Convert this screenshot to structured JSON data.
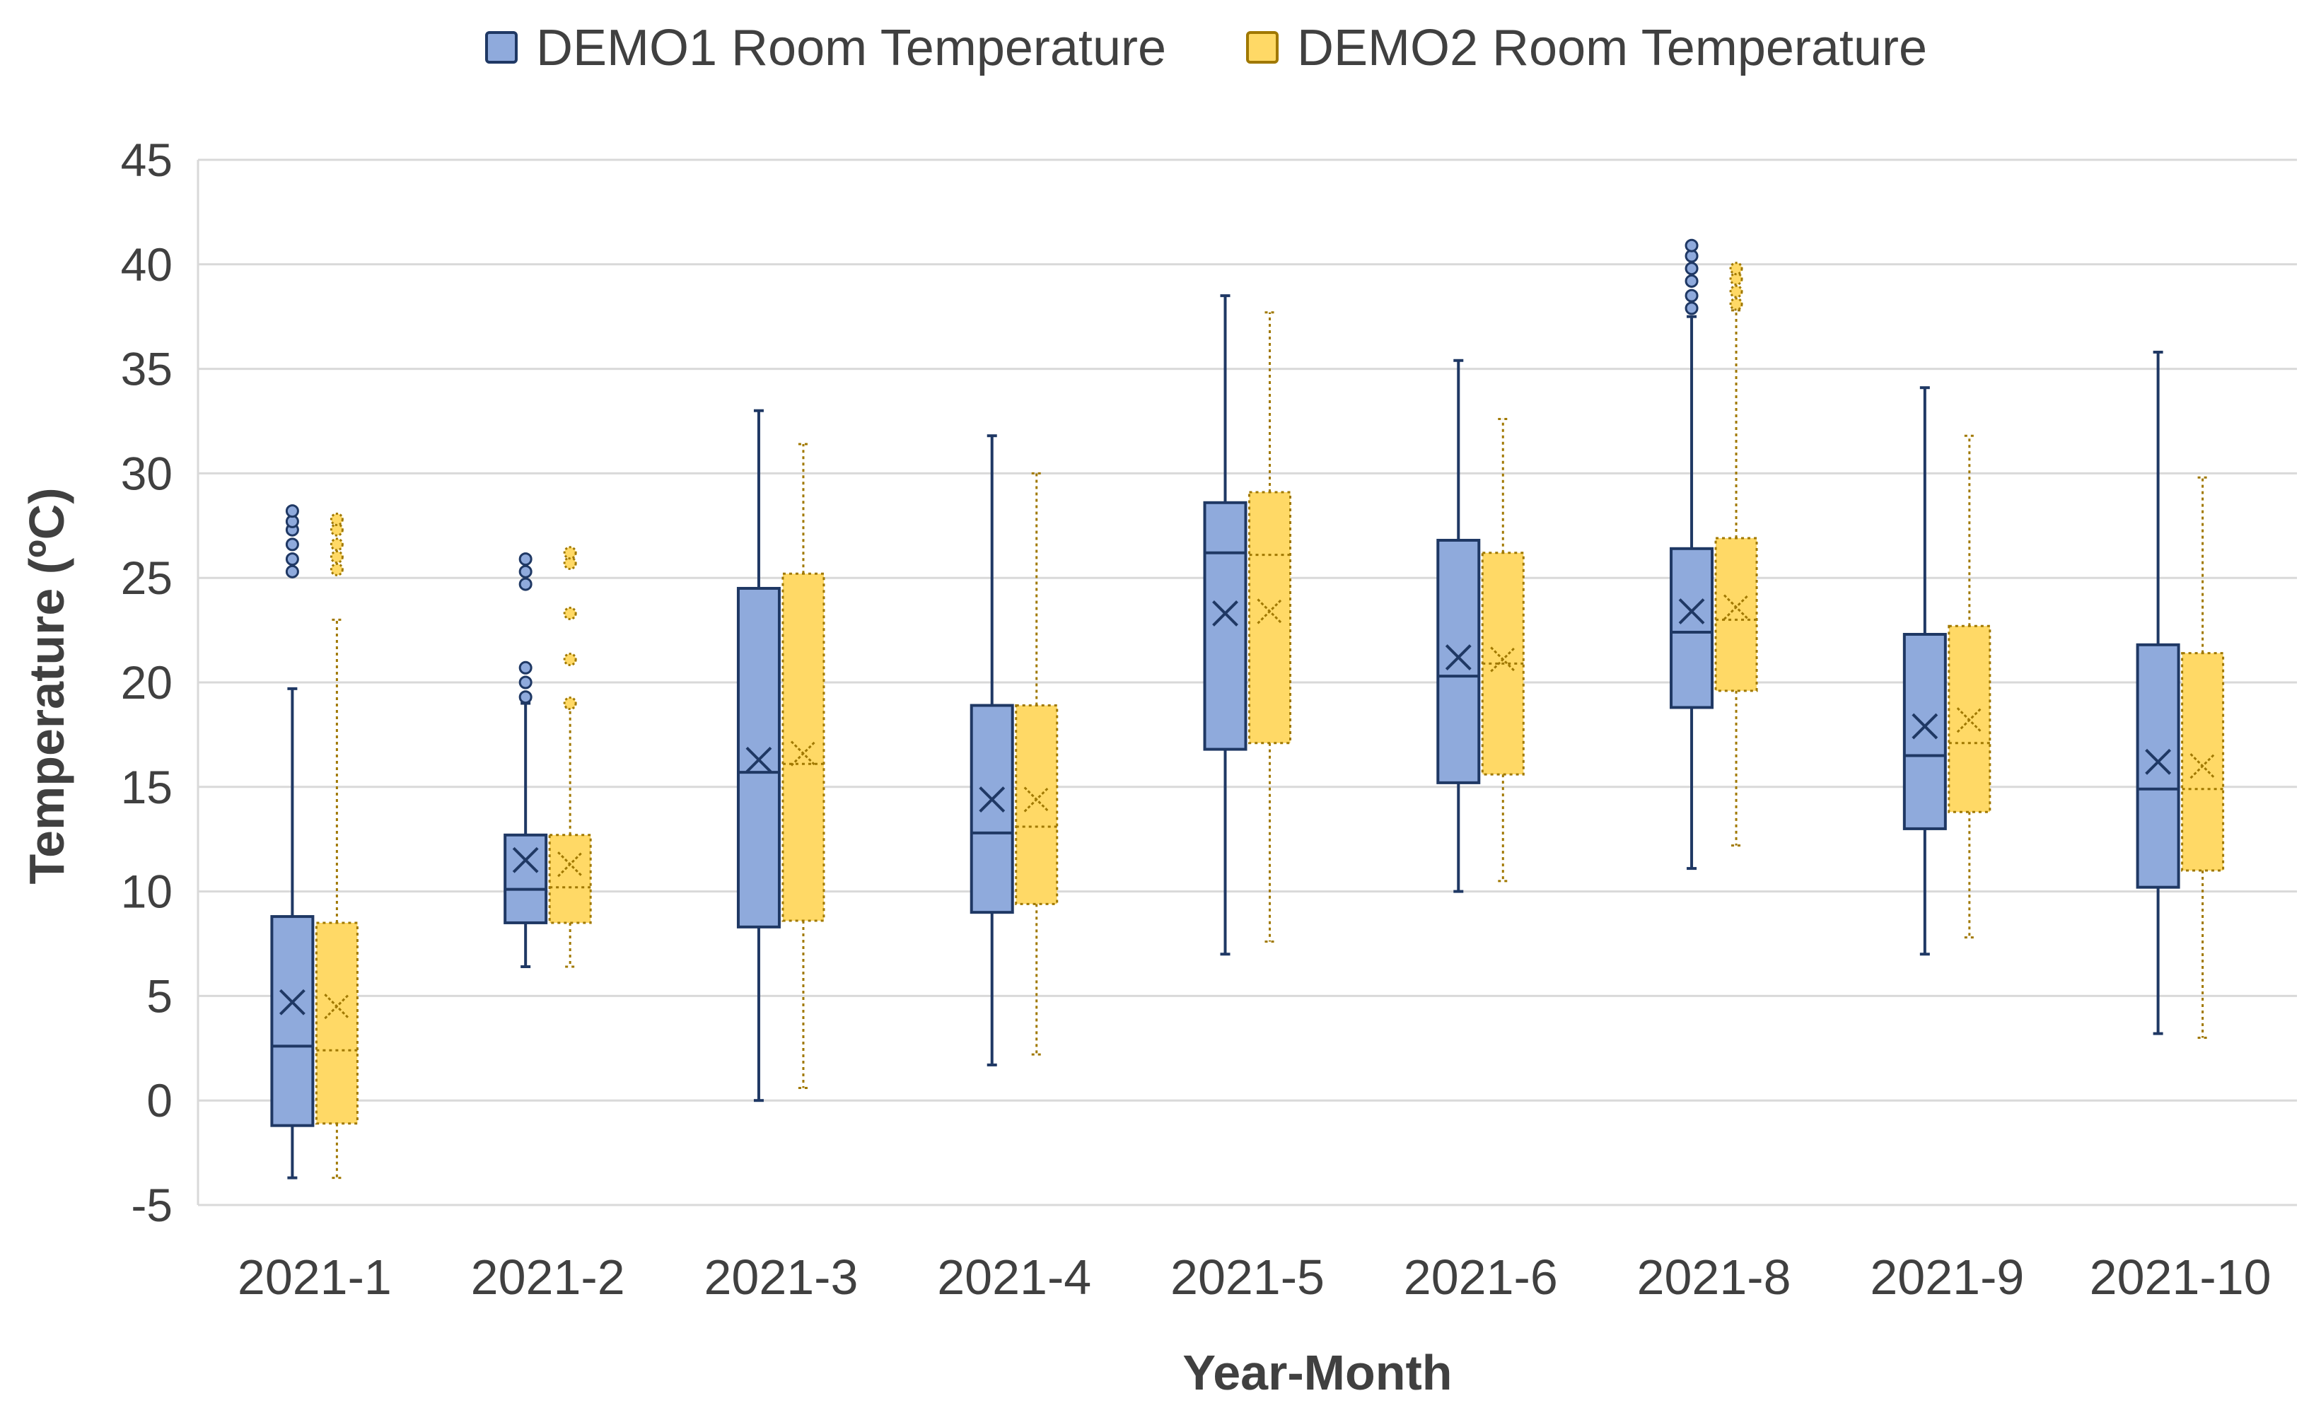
{
  "chart_data": {
    "type": "boxplot",
    "title": "",
    "xlabel": "Year-Month",
    "ylabel": "Temperature (ºC)",
    "ylim": [
      -5,
      45
    ],
    "yticks": [
      -5,
      0,
      5,
      10,
      15,
      20,
      25,
      30,
      35,
      40,
      45
    ],
    "grid": true,
    "legend_position": "top",
    "categories": [
      "2021-1",
      "2021-2",
      "2021-3",
      "2021-4",
      "2021-5",
      "2021-6",
      "2021-8",
      "2021-9",
      "2021-10"
    ],
    "series": [
      {
        "name": "DEMO1 Room Temperature",
        "color": "#8faadc",
        "edge_color": "#1f3864",
        "line_style": "solid",
        "boxes": [
          {
            "min": -3.7,
            "q1": -1.2,
            "median": 2.6,
            "q3": 8.8,
            "max": 19.7,
            "mean": 4.7,
            "outliers": [
              25.3,
              25.9,
              26.6,
              27.3,
              27.7,
              28.2
            ]
          },
          {
            "min": 6.4,
            "q1": 8.5,
            "median": 10.1,
            "q3": 12.7,
            "max": 19.0,
            "mean": 11.5,
            "outliers": [
              19.3,
              20.0,
              20.7,
              24.7,
              25.3,
              25.9
            ]
          },
          {
            "min": 0.0,
            "q1": 8.3,
            "median": 15.7,
            "q3": 24.5,
            "max": 33.0,
            "mean": 16.3,
            "outliers": []
          },
          {
            "min": 1.7,
            "q1": 9.0,
            "median": 12.8,
            "q3": 18.9,
            "max": 31.8,
            "mean": 14.4,
            "outliers": []
          },
          {
            "min": 7.0,
            "q1": 16.8,
            "median": 26.2,
            "q3": 28.6,
            "max": 38.5,
            "mean": 23.3,
            "outliers": []
          },
          {
            "min": 10.0,
            "q1": 15.2,
            "median": 20.3,
            "q3": 26.8,
            "max": 35.4,
            "mean": 21.2,
            "outliers": []
          },
          {
            "min": 11.1,
            "q1": 18.8,
            "median": 22.4,
            "q3": 26.4,
            "max": 37.5,
            "mean": 23.4,
            "outliers": [
              37.9,
              38.5,
              39.2,
              39.8,
              40.4,
              40.9
            ]
          },
          {
            "min": 7.0,
            "q1": 13.0,
            "median": 16.5,
            "q3": 22.3,
            "max": 34.1,
            "mean": 17.9,
            "outliers": []
          },
          {
            "min": 3.2,
            "q1": 10.2,
            "median": 14.9,
            "q3": 21.8,
            "max": 35.8,
            "mean": 16.2,
            "outliers": []
          }
        ]
      },
      {
        "name": "DEMO2 Room Temperature",
        "color": "#ffd966",
        "edge_color": "#a07800",
        "line_style": "dotted",
        "boxes": [
          {
            "min": -3.7,
            "q1": -1.1,
            "median": 2.4,
            "q3": 8.5,
            "max": 23.0,
            "mean": 4.5,
            "outliers": [
              25.4,
              26.0,
              26.6,
              27.3,
              27.8
            ]
          },
          {
            "min": 6.4,
            "q1": 8.5,
            "median": 10.2,
            "q3": 12.7,
            "max": 18.8,
            "mean": 11.3,
            "outliers": [
              19.0,
              21.1,
              23.3,
              25.7,
              26.2
            ]
          },
          {
            "min": 0.6,
            "q1": 8.6,
            "median": 16.1,
            "q3": 25.2,
            "max": 31.4,
            "mean": 16.6,
            "outliers": []
          },
          {
            "min": 2.2,
            "q1": 9.4,
            "median": 13.1,
            "q3": 18.9,
            "max": 30.0,
            "mean": 14.4,
            "outliers": []
          },
          {
            "min": 7.6,
            "q1": 17.1,
            "median": 26.1,
            "q3": 29.1,
            "max": 37.7,
            "mean": 23.4,
            "outliers": []
          },
          {
            "min": 10.5,
            "q1": 15.6,
            "median": 20.9,
            "q3": 26.2,
            "max": 32.6,
            "mean": 21.1,
            "outliers": []
          },
          {
            "min": 12.2,
            "q1": 19.6,
            "median": 23.0,
            "q3": 26.9,
            "max": 37.8,
            "mean": 23.6,
            "outliers": [
              38.1,
              38.7,
              39.3,
              39.8
            ]
          },
          {
            "min": 7.8,
            "q1": 13.8,
            "median": 17.1,
            "q3": 22.7,
            "max": 31.8,
            "mean": 18.2,
            "outliers": []
          },
          {
            "min": 3.0,
            "q1": 11.0,
            "median": 14.9,
            "q3": 21.4,
            "max": 29.8,
            "mean": 16.0,
            "outliers": []
          }
        ]
      }
    ]
  }
}
